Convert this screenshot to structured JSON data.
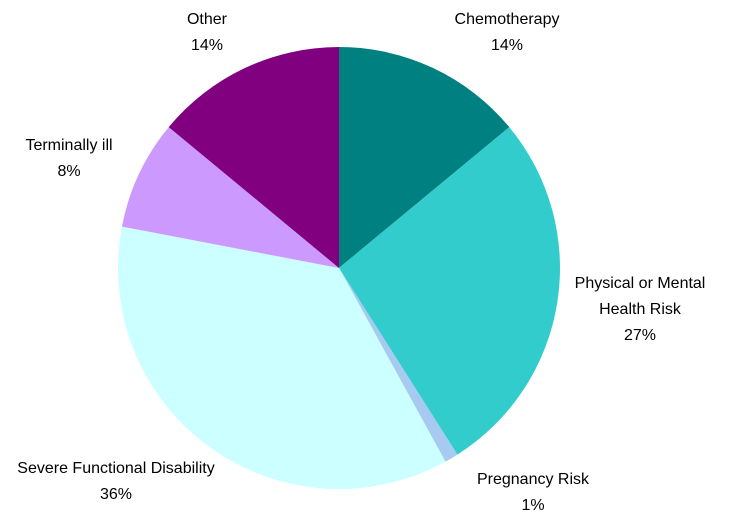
{
  "chart_data": {
    "type": "pie",
    "categories": [
      "Chemotherapy",
      "Physical or Mental Health Risk",
      "Pregnancy Risk",
      "Severe Functional Disability",
      "Terminally ill",
      "Other"
    ],
    "values": [
      14,
      27,
      1,
      36,
      8,
      14
    ],
    "value_labels": [
      "14%",
      "27%",
      "1%",
      "36%",
      "8%",
      "14%"
    ],
    "colors": [
      "#008080",
      "#33cccc",
      "#a6caf0",
      "#ccffff",
      "#cc99ff",
      "#800080"
    ]
  }
}
